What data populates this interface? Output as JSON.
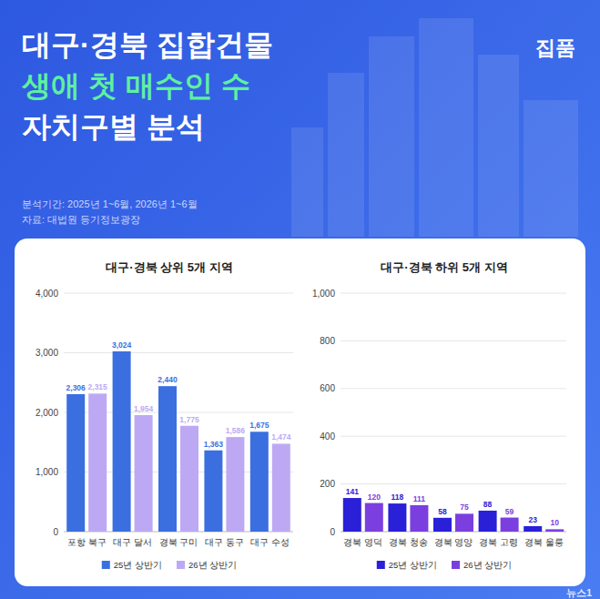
{
  "header": {
    "title_lines": [
      "대구·경북 집합건물",
      "생애 첫 매수인 수",
      "자치구별 분석"
    ],
    "brand": "집품",
    "period": "분석기간: 2025년 1~6월, 2026년 1~6월",
    "source": "자료: 대법원 등기정보광장"
  },
  "watermark": "뉴스1",
  "chart_data": [
    {
      "type": "bar",
      "title": "대구·경북 상위 5개 지역",
      "categories": [
        "포항 북구",
        "대구 달서",
        "경북 구미",
        "대구 동구",
        "대구 수성"
      ],
      "series": [
        {
          "name": "25년 상반기",
          "color": "#3b6fe0",
          "values": [
            2306,
            3024,
            2440,
            1363,
            1675
          ],
          "value_labels": [
            "2,306",
            "3,024",
            "2,440",
            "1,363",
            "1,675"
          ]
        },
        {
          "name": "26년 상반기",
          "color": "#bda9f3",
          "values": [
            2315,
            1954,
            1775,
            1586,
            1474
          ],
          "value_labels": [
            "2,315",
            "1,954",
            "1,775",
            "1,586",
            "1,474"
          ]
        }
      ],
      "ylim": [
        0,
        4000
      ],
      "yticks": [
        0,
        {
          "value": 1000,
          "label": "1,000"
        },
        {
          "value": 2000,
          "label": "2,000"
        },
        {
          "value": 3000,
          "label": "3,000"
        },
        {
          "value": 4000,
          "label": "4,000"
        }
      ],
      "grid": true,
      "data_labels": true,
      "legend": "bottom"
    },
    {
      "type": "bar",
      "title": "대구·경북 하위 5개 지역",
      "categories": [
        "경북 영덕",
        "경북 청송",
        "경북 영양",
        "경북 고령",
        "경북 울릉"
      ],
      "series": [
        {
          "name": "25년 상반기",
          "color": "#2a20d8",
          "values": [
            141,
            118,
            58,
            88,
            23
          ]
        },
        {
          "name": "26년 상반기",
          "color": "#7b3fe0",
          "values": [
            120,
            111,
            75,
            59,
            10
          ]
        }
      ],
      "ylim": [
        0,
        1000
      ],
      "yticks": [
        0,
        200,
        400,
        600,
        800,
        {
          "value": 1000,
          "label": "1,000"
        }
      ],
      "grid": true,
      "data_labels": true,
      "legend": "bottom"
    }
  ]
}
